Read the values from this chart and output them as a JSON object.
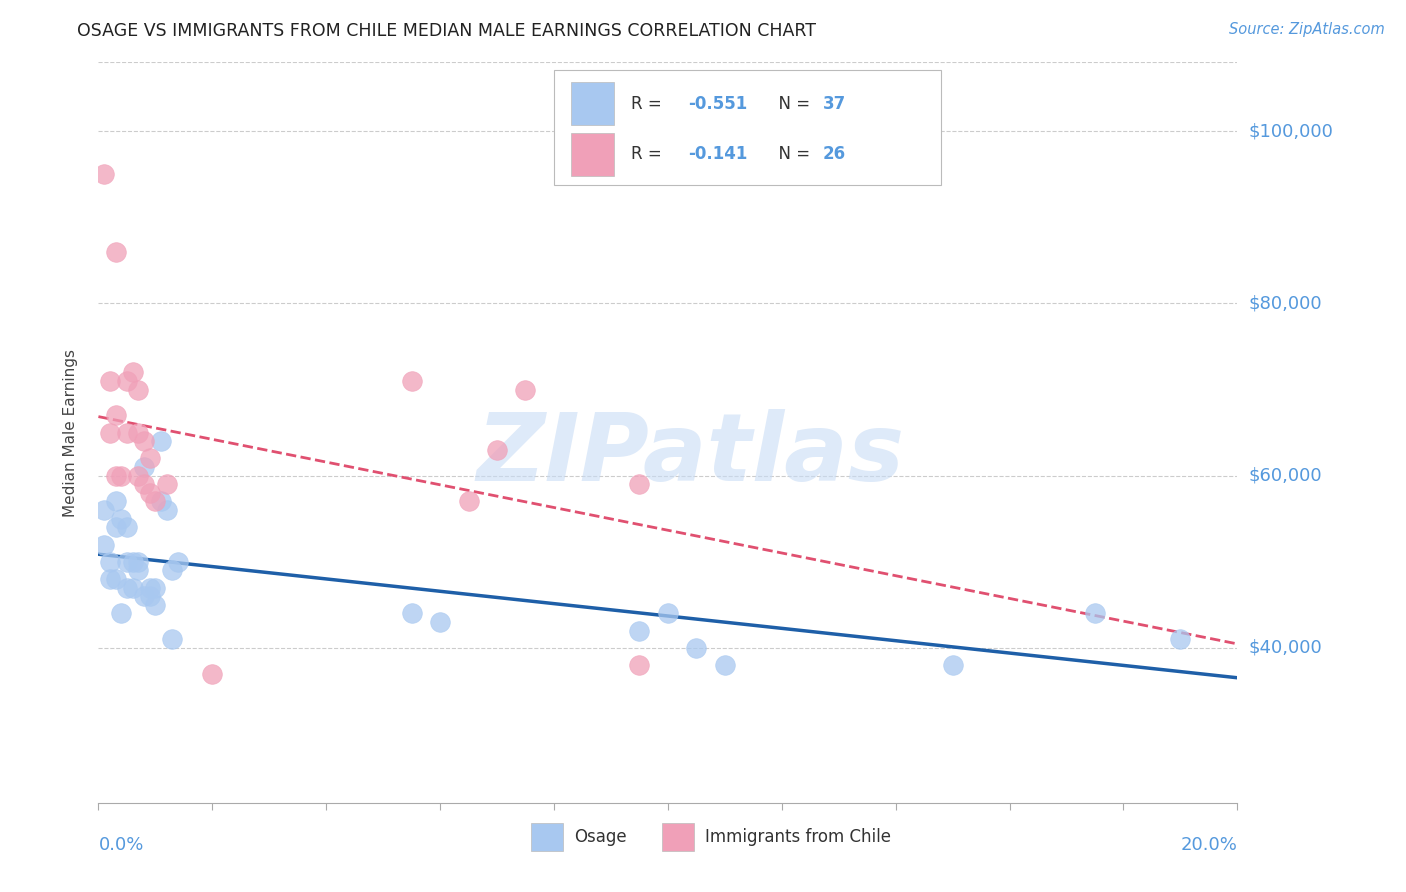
{
  "title": "OSAGE VS IMMIGRANTS FROM CHILE MEDIAN MALE EARNINGS CORRELATION CHART",
  "source": "Source: ZipAtlas.com",
  "ylabel": "Median Male Earnings",
  "y_ticks": [
    100000,
    80000,
    60000,
    40000
  ],
  "y_tick_labels": [
    "$100,000",
    "$80,000",
    "$60,000",
    "$40,000"
  ],
  "xlim": [
    0.0,
    0.2
  ],
  "ylim": [
    22000,
    108000
  ],
  "watermark": "ZIPatlas",
  "osage": {
    "color": "#A8C8F0",
    "trend_color": "#1E5FA8",
    "x": [
      0.001,
      0.001,
      0.002,
      0.002,
      0.003,
      0.003,
      0.003,
      0.004,
      0.004,
      0.005,
      0.005,
      0.005,
      0.006,
      0.006,
      0.007,
      0.007,
      0.008,
      0.008,
      0.009,
      0.009,
      0.01,
      0.01,
      0.011,
      0.011,
      0.012,
      0.013,
      0.013,
      0.014,
      0.055,
      0.06,
      0.095,
      0.1,
      0.11,
      0.15,
      0.175,
      0.19,
      0.105
    ],
    "y": [
      56000,
      52000,
      50000,
      48000,
      57000,
      54000,
      48000,
      55000,
      44000,
      54000,
      50000,
      47000,
      50000,
      47000,
      50000,
      49000,
      61000,
      46000,
      47000,
      46000,
      47000,
      45000,
      64000,
      57000,
      56000,
      49000,
      41000,
      50000,
      44000,
      43000,
      42000,
      44000,
      38000,
      38000,
      44000,
      41000,
      40000
    ]
  },
  "chile": {
    "color": "#F0A0B8",
    "trend_color": "#E05070",
    "x": [
      0.001,
      0.002,
      0.002,
      0.003,
      0.003,
      0.003,
      0.004,
      0.005,
      0.005,
      0.006,
      0.007,
      0.007,
      0.007,
      0.008,
      0.008,
      0.009,
      0.009,
      0.01,
      0.012,
      0.055,
      0.065,
      0.07,
      0.075,
      0.095,
      0.095,
      0.02
    ],
    "y": [
      95000,
      71000,
      65000,
      67000,
      60000,
      86000,
      60000,
      71000,
      65000,
      72000,
      70000,
      65000,
      60000,
      64000,
      59000,
      62000,
      58000,
      57000,
      59000,
      71000,
      57000,
      63000,
      70000,
      59000,
      38000,
      37000
    ]
  },
  "legend": {
    "series1_color": "#A8C8F0",
    "series2_color": "#F0A0B8",
    "r1": "-0.551",
    "n1": "37",
    "r2": "-0.141",
    "n2": "26"
  },
  "bottom_legend": {
    "osage_label": "Osage",
    "chile_label": "Immigrants from Chile"
  }
}
